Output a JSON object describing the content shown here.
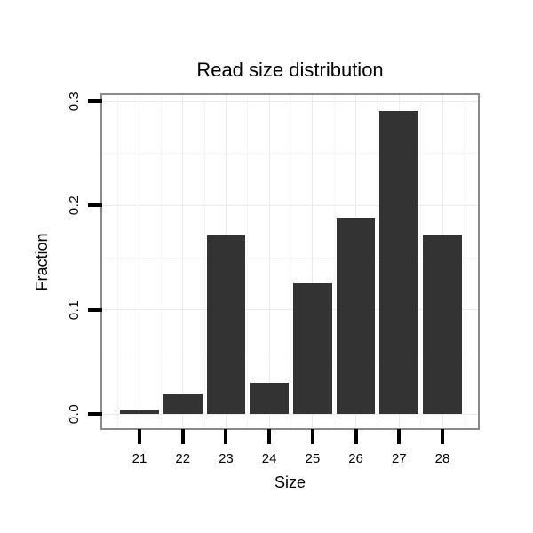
{
  "chart_data": {
    "type": "bar",
    "title": "Read size distribution",
    "xlabel": "Size",
    "ylabel": "Fraction",
    "categories": [
      "21",
      "22",
      "23",
      "24",
      "25",
      "26",
      "27",
      "28"
    ],
    "x_positions": [
      21,
      22,
      23,
      24,
      25,
      26,
      27,
      28
    ],
    "values": [
      0.004,
      0.02,
      0.171,
      0.03,
      0.125,
      0.188,
      0.291,
      0.171
    ],
    "bar_width": 0.9,
    "y_ticks": [
      {
        "value": 0.0,
        "label": "0.0"
      },
      {
        "value": 0.1,
        "label": "0.1"
      },
      {
        "value": 0.2,
        "label": "0.2"
      },
      {
        "value": 0.3,
        "label": "0.3"
      }
    ],
    "y_minor_gridlines": [
      0.05,
      0.15,
      0.25
    ],
    "x_minor_gridlines": [
      20.5,
      21.5,
      22.5,
      23.5,
      24.5,
      25.5,
      26.5,
      27.5,
      28.5
    ],
    "xlim": [
      20.138,
      28.821
    ],
    "ylim": [
      -0.0136,
      0.306
    ],
    "grid": {
      "major": true,
      "minor": true
    },
    "legend": "none",
    "colors": {
      "bar_fill": "#333333",
      "panel_background": "#ffffff",
      "panel_border": "#8a8a8a",
      "grid_major": "#ebebeb",
      "grid_minor": "#f5f5f5",
      "axis_tick": "#000000",
      "text": "#000000"
    }
  }
}
